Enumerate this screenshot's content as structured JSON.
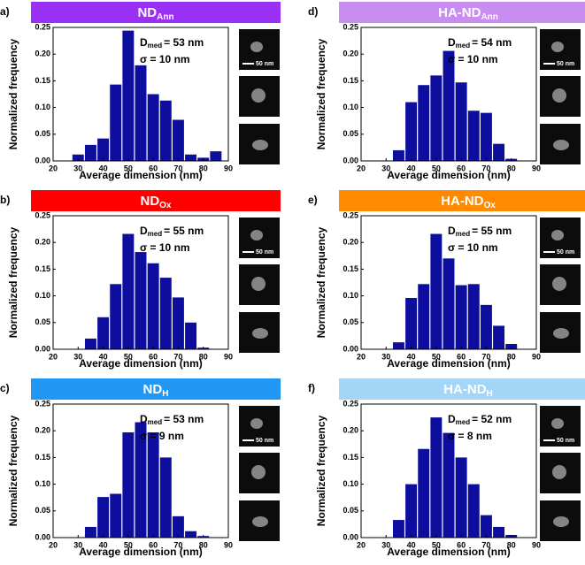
{
  "chart_data": [
    {
      "type": "histogram",
      "panel_label": "a)",
      "title": "ND",
      "title_sub": "Ann",
      "header_color": "#9b30f5",
      "stat_symbol": "D",
      "stat_sub": "med",
      "median_text": "= 53 nm",
      "sigma_text": "σ = 10 nm",
      "scale_bar": "50 nm",
      "xlabel": "Average dimension (nm)",
      "ylabel": "Normalized frequency",
      "color": "#0d0d9e",
      "bins": [
        27.5,
        32.5,
        37.5,
        42.5,
        47.5,
        52.5,
        57.5,
        62.5,
        67.5,
        72.5,
        77.5,
        82.5,
        87.5
      ],
      "values": [
        0.012,
        0.03,
        0.042,
        0.143,
        0.244,
        0.179,
        0.125,
        0.113,
        0.077,
        0.012,
        0.006,
        0.018
      ],
      "xlim": [
        20,
        90
      ],
      "xticks": [
        20,
        30,
        40,
        50,
        60,
        70,
        80,
        90
      ],
      "ylim": [
        0,
        0.25
      ],
      "yticks": [
        {
          "value": 0,
          "label": "0.00"
        },
        {
          "value": 0.05,
          "label": "0.05"
        },
        {
          "value": 0.1,
          "label": "0.10"
        },
        {
          "value": 0.15,
          "label": "0.15"
        },
        {
          "value": 0.2,
          "label": "0.20"
        },
        {
          "value": 0.25,
          "label": "0.25"
        }
      ]
    },
    {
      "type": "histogram",
      "panel_label": "b)",
      "title": "ND",
      "title_sub": "Ox",
      "header_color": "#ff0000",
      "stat_symbol": "D",
      "stat_sub": "med",
      "median_text": "= 55 nm",
      "sigma_text": "σ = 10 nm",
      "scale_bar": "50 nm",
      "xlabel": "Average dimension (nm)",
      "ylabel": "Normalized frequency",
      "color": "#0d0d9e",
      "bins": [
        32.5,
        37.5,
        42.5,
        47.5,
        52.5,
        57.5,
        62.5,
        67.5,
        72.5,
        77.5,
        82.5
      ],
      "values": [
        0.02,
        0.06,
        0.122,
        0.216,
        0.182,
        0.161,
        0.134,
        0.097,
        0.05,
        0.003
      ],
      "xlim": [
        20,
        90
      ],
      "xticks": [
        20,
        30,
        40,
        50,
        60,
        70,
        80,
        90
      ],
      "ylim": [
        0,
        0.25
      ],
      "yticks": [
        {
          "value": 0,
          "label": "0.00"
        },
        {
          "value": 0.05,
          "label": "0.05"
        },
        {
          "value": 0.1,
          "label": "0.10"
        },
        {
          "value": 0.15,
          "label": "0.15"
        },
        {
          "value": 0.2,
          "label": "0.20"
        },
        {
          "value": 0.25,
          "label": "0.25"
        }
      ]
    },
    {
      "type": "histogram",
      "panel_label": "c)",
      "title": "ND",
      "title_sub": "H",
      "header_color": "#2196f3",
      "stat_symbol": "D",
      "stat_sub": "med",
      "median_text": "= 53 nm",
      "sigma_text": "σ = 9 nm",
      "scale_bar": "50 nm",
      "xlabel": "Average dimension (nm)",
      "ylabel": "Normalized frequency",
      "color": "#0d0d9e",
      "bins": [
        32.5,
        37.5,
        42.5,
        47.5,
        52.5,
        57.5,
        62.5,
        67.5,
        72.5,
        77.5,
        82.5
      ],
      "values": [
        0.02,
        0.076,
        0.082,
        0.197,
        0.216,
        0.197,
        0.15,
        0.04,
        0.012,
        0.003
      ],
      "xlim": [
        20,
        90
      ],
      "xticks": [
        20,
        30,
        40,
        50,
        60,
        70,
        80,
        90
      ],
      "ylim": [
        0,
        0.25
      ],
      "yticks": [
        {
          "value": 0,
          "label": "0.00"
        },
        {
          "value": 0.05,
          "label": "0.05"
        },
        {
          "value": 0.1,
          "label": "0.10"
        },
        {
          "value": 0.15,
          "label": "0.15"
        },
        {
          "value": 0.2,
          "label": "0.20"
        },
        {
          "value": 0.25,
          "label": "0.25"
        }
      ]
    },
    {
      "type": "histogram",
      "panel_label": "d)",
      "title": "HA-ND",
      "title_sub": "Ann",
      "header_color": "#c98df2",
      "stat_symbol": "D",
      "stat_sub": "med",
      "median_text": "= 54 nm",
      "sigma_text": "σ = 10 nm",
      "scale_bar": "50 nm",
      "xlabel": "Average dimension (nm)",
      "ylabel": "Normalized frequency",
      "color": "#0d0d9e",
      "bins": [
        32.5,
        37.5,
        42.5,
        47.5,
        52.5,
        57.5,
        62.5,
        67.5,
        72.5,
        77.5,
        82.5
      ],
      "values": [
        0.02,
        0.11,
        0.142,
        0.16,
        0.206,
        0.147,
        0.094,
        0.09,
        0.032,
        0.004
      ],
      "xlim": [
        20,
        90
      ],
      "xticks": [
        20,
        30,
        40,
        50,
        60,
        70,
        80,
        90
      ],
      "ylim": [
        0,
        0.25
      ],
      "yticks": [
        {
          "value": 0,
          "label": "0.00"
        },
        {
          "value": 0.05,
          "label": "0.05"
        },
        {
          "value": 0.1,
          "label": "0.10"
        },
        {
          "value": 0.15,
          "label": "0.15"
        },
        {
          "value": 0.2,
          "label": "0.20"
        },
        {
          "value": 0.25,
          "label": "0.25"
        }
      ]
    },
    {
      "type": "histogram",
      "panel_label": "e)",
      "title": "HA-ND",
      "title_sub": "Ox",
      "header_color": "#ff8a00",
      "stat_symbol": "D",
      "stat_sub": "med",
      "median_text": "= 55 nm",
      "sigma_text": "σ = 10 nm",
      "scale_bar": "50 nm",
      "xlabel": "Average dimension (nm)",
      "ylabel": "Normalized frequency",
      "color": "#0d0d9e",
      "bins": [
        32.5,
        37.5,
        42.5,
        47.5,
        52.5,
        57.5,
        62.5,
        67.5,
        72.5,
        77.5,
        82.5
      ],
      "values": [
        0.013,
        0.096,
        0.122,
        0.216,
        0.17,
        0.12,
        0.122,
        0.083,
        0.044,
        0.01
      ],
      "xlim": [
        20,
        90
      ],
      "xticks": [
        20,
        30,
        40,
        50,
        60,
        70,
        80,
        90
      ],
      "ylim": [
        0,
        0.25
      ],
      "yticks": [
        {
          "value": 0,
          "label": "0.00"
        },
        {
          "value": 0.05,
          "label": "0.05"
        },
        {
          "value": 0.1,
          "label": "0.10"
        },
        {
          "value": 0.15,
          "label": "0.15"
        },
        {
          "value": 0.2,
          "label": "0.20"
        },
        {
          "value": 0.25,
          "label": "0.25"
        }
      ]
    },
    {
      "type": "histogram",
      "panel_label": "f)",
      "title": "HA-ND",
      "title_sub": "H",
      "header_color": "#a3d5f7",
      "stat_symbol": "D",
      "stat_sub": "med",
      "median_text": "= 52 nm",
      "sigma_text": "σ = 8 nm",
      "scale_bar": "50 nm",
      "xlabel": "Average dimension (nm)",
      "ylabel": "Normalized frequency",
      "color": "#0d0d9e",
      "bins": [
        32.5,
        37.5,
        42.5,
        47.5,
        52.5,
        57.5,
        62.5,
        67.5,
        72.5,
        77.5,
        82.5
      ],
      "values": [
        0.033,
        0.1,
        0.166,
        0.225,
        0.196,
        0.15,
        0.1,
        0.042,
        0.02,
        0.005
      ],
      "xlim": [
        20,
        90
      ],
      "xticks": [
        20,
        30,
        40,
        50,
        60,
        70,
        80,
        90
      ],
      "ylim": [
        0,
        0.25
      ],
      "yticks": [
        {
          "value": 0,
          "label": "0.00"
        },
        {
          "value": 0.05,
          "label": "0.05"
        },
        {
          "value": 0.1,
          "label": "0.10"
        },
        {
          "value": 0.15,
          "label": "0.15"
        },
        {
          "value": 0.2,
          "label": "0.20"
        },
        {
          "value": 0.25,
          "label": "0.25"
        }
      ]
    }
  ]
}
